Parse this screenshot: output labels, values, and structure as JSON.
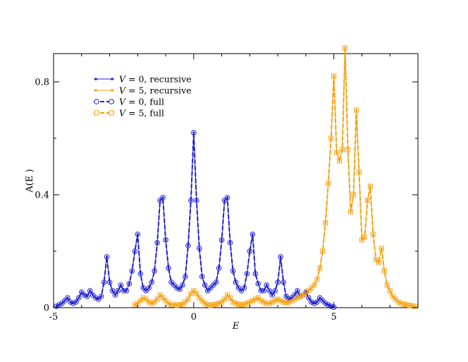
{
  "chart_data": {
    "type": "line",
    "xlabel": "E",
    "ylabel": "A(E )",
    "xlim": [
      -5,
      8
    ],
    "ylim": [
      0,
      0.9
    ],
    "xticks": [
      {
        "value": -5,
        "label": "-5"
      },
      {
        "value": 0,
        "label": "0"
      },
      {
        "value": 5,
        "label": "5"
      }
    ],
    "yticks": [
      {
        "value": 0,
        "label": "0"
      },
      {
        "value": 0.4,
        "label": "0.4"
      },
      {
        "value": 0.8,
        "label": "0.8"
      }
    ],
    "grid": false,
    "legend_position": "top-left",
    "series": [
      {
        "name": "V = 0, recursive",
        "name_italic": "V",
        "name_rest": " = 0, recursive",
        "color": "#1f1fd0",
        "style": "solid-dot",
        "x": [
          -4.9,
          -4.8,
          -4.7,
          -4.6,
          -4.5,
          -4.4,
          -4.3,
          -4.2,
          -4.1,
          -4.0,
          -3.9,
          -3.8,
          -3.7,
          -3.6,
          -3.5,
          -3.4,
          -3.3,
          -3.2,
          -3.1,
          -3.0,
          -2.9,
          -2.8,
          -2.7,
          -2.6,
          -2.5,
          -2.4,
          -2.3,
          -2.2,
          -2.1,
          -2.0,
          -1.9,
          -1.8,
          -1.7,
          -1.6,
          -1.5,
          -1.4,
          -1.3,
          -1.2,
          -1.1,
          -1.0,
          -0.9,
          -0.8,
          -0.7,
          -0.6,
          -0.5,
          -0.4,
          -0.3,
          -0.2,
          -0.1,
          0.0,
          0.1,
          0.2,
          0.3,
          0.4,
          0.5,
          0.6,
          0.7,
          0.8,
          0.9,
          1.0,
          1.1,
          1.2,
          1.3,
          1.4,
          1.5,
          1.6,
          1.7,
          1.8,
          1.9,
          2.0,
          2.1,
          2.2,
          2.3,
          2.4,
          2.5,
          2.6,
          2.7,
          2.8,
          2.9,
          3.0,
          3.1,
          3.2,
          3.3,
          3.4,
          3.5,
          3.6,
          3.7,
          3.8,
          3.9,
          4.0,
          4.1,
          4.2,
          4.3,
          4.4,
          4.5,
          4.6,
          4.7,
          4.8,
          4.9,
          5.0
        ],
        "y": [
          0.005,
          0.01,
          0.015,
          0.025,
          0.035,
          0.02,
          0.015,
          0.02,
          0.035,
          0.055,
          0.045,
          0.04,
          0.06,
          0.045,
          0.035,
          0.03,
          0.04,
          0.09,
          0.18,
          0.09,
          0.06,
          0.045,
          0.06,
          0.08,
          0.06,
          0.06,
          0.085,
          0.13,
          0.2,
          0.26,
          0.12,
          0.07,
          0.06,
          0.07,
          0.09,
          0.13,
          0.23,
          0.38,
          0.39,
          0.24,
          0.14,
          0.09,
          0.08,
          0.07,
          0.065,
          0.08,
          0.11,
          0.22,
          0.38,
          0.62,
          0.38,
          0.21,
          0.11,
          0.08,
          0.06,
          0.07,
          0.08,
          0.09,
          0.14,
          0.24,
          0.38,
          0.39,
          0.23,
          0.13,
          0.09,
          0.07,
          0.06,
          0.07,
          0.12,
          0.2,
          0.26,
          0.12,
          0.085,
          0.06,
          0.06,
          0.08,
          0.06,
          0.045,
          0.06,
          0.09,
          0.18,
          0.09,
          0.04,
          0.03,
          0.035,
          0.045,
          0.06,
          0.04,
          0.045,
          0.055,
          0.035,
          0.02,
          0.015,
          0.02,
          0.035,
          0.025,
          0.015,
          0.01,
          0.005,
          0.002
        ]
      },
      {
        "name": "V = 5, recursive",
        "name_italic": "V",
        "name_rest": " = 5, recursive",
        "color": "#f5a00f",
        "style": "solid-dot",
        "x": [
          -2.1,
          -2.0,
          -1.9,
          -1.8,
          -1.7,
          -1.6,
          -1.5,
          -1.4,
          -1.3,
          -1.2,
          -1.1,
          -1.0,
          -0.9,
          -0.8,
          -0.7,
          -0.6,
          -0.5,
          -0.4,
          -0.3,
          -0.2,
          -0.1,
          0.0,
          0.1,
          0.2,
          0.3,
          0.4,
          0.5,
          0.6,
          0.7,
          0.8,
          0.9,
          1.0,
          1.1,
          1.2,
          1.3,
          1.4,
          1.5,
          1.6,
          1.7,
          1.8,
          1.9,
          2.0,
          2.1,
          2.2,
          2.3,
          2.4,
          2.5,
          2.6,
          2.7,
          2.8,
          2.9,
          3.0,
          3.1,
          3.2,
          3.3,
          3.4,
          3.5,
          3.6,
          3.7,
          3.8,
          3.9,
          4.0,
          4.1,
          4.2,
          4.3,
          4.4,
          4.5,
          4.6,
          4.7,
          4.8,
          4.9,
          5.0,
          5.1,
          5.2,
          5.3,
          5.4,
          5.5,
          5.6,
          5.7,
          5.8,
          5.9,
          6.0,
          6.1,
          6.2,
          6.3,
          6.4,
          6.5,
          6.6,
          6.7,
          6.8,
          6.9,
          7.0,
          7.1,
          7.2,
          7.3,
          7.4,
          7.5,
          7.6,
          7.7,
          7.8,
          7.9
        ],
        "y": [
          0.01,
          0.015,
          0.025,
          0.035,
          0.03,
          0.02,
          0.015,
          0.02,
          0.03,
          0.045,
          0.035,
          0.025,
          0.015,
          0.01,
          0.01,
          0.008,
          0.01,
          0.012,
          0.02,
          0.03,
          0.05,
          0.06,
          0.05,
          0.035,
          0.025,
          0.015,
          0.01,
          0.008,
          0.01,
          0.012,
          0.015,
          0.02,
          0.03,
          0.045,
          0.035,
          0.02,
          0.015,
          0.012,
          0.01,
          0.012,
          0.015,
          0.02,
          0.025,
          0.03,
          0.035,
          0.025,
          0.02,
          0.015,
          0.015,
          0.02,
          0.025,
          0.03,
          0.025,
          0.02,
          0.018,
          0.02,
          0.025,
          0.03,
          0.035,
          0.04,
          0.045,
          0.05,
          0.06,
          0.07,
          0.08,
          0.1,
          0.14,
          0.2,
          0.3,
          0.44,
          0.6,
          0.82,
          0.55,
          0.52,
          0.56,
          0.92,
          0.56,
          0.34,
          0.4,
          0.7,
          0.48,
          0.24,
          0.25,
          0.38,
          0.43,
          0.26,
          0.17,
          0.16,
          0.21,
          0.13,
          0.08,
          0.06,
          0.04,
          0.03,
          0.02,
          0.015,
          0.012,
          0.01,
          0.008,
          0.006,
          0.005
        ]
      },
      {
        "name": "V = 0, full",
        "name_italic": "V",
        "name_rest": " = 0, full",
        "color": "#1f1fd0",
        "style": "dashed-circle",
        "same_as": 0
      },
      {
        "name": "V = 5, full",
        "name_italic": "V",
        "name_rest": " = 5, full",
        "color": "#f5a00f",
        "style": "dashed-square",
        "same_as": 1
      }
    ]
  }
}
